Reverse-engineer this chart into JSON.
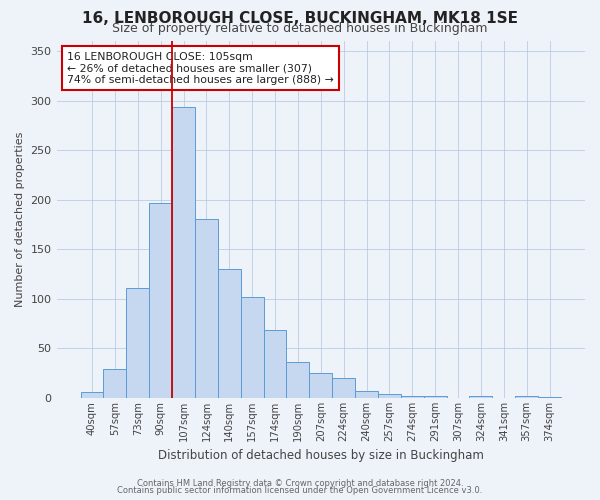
{
  "title": "16, LENBOROUGH CLOSE, BUCKINGHAM, MK18 1SE",
  "subtitle": "Size of property relative to detached houses in Buckingham",
  "xlabel": "Distribution of detached houses by size in Buckingham",
  "ylabel": "Number of detached properties",
  "bar_labels": [
    "40sqm",
    "57sqm",
    "73sqm",
    "90sqm",
    "107sqm",
    "124sqm",
    "140sqm",
    "157sqm",
    "174sqm",
    "190sqm",
    "207sqm",
    "224sqm",
    "240sqm",
    "257sqm",
    "274sqm",
    "291sqm",
    "307sqm",
    "324sqm",
    "341sqm",
    "357sqm",
    "374sqm"
  ],
  "bar_values": [
    6,
    29,
    111,
    197,
    293,
    181,
    130,
    102,
    69,
    36,
    25,
    20,
    7,
    4,
    2,
    2,
    0,
    2,
    0,
    2,
    1
  ],
  "bar_color": "#c5d8f0",
  "bar_edge_color": "#5b9bd5",
  "vline_index": 4,
  "vline_color": "#cc0000",
  "annotation_text": "16 LENBOROUGH CLOSE: 105sqm\n← 26% of detached houses are smaller (307)\n74% of semi-detached houses are larger (888) →",
  "annotation_box_color": "#ffffff",
  "annotation_box_edge": "#cc0000",
  "ylim": [
    0,
    360
  ],
  "yticks": [
    0,
    50,
    100,
    150,
    200,
    250,
    300,
    350
  ],
  "footer_line1": "Contains HM Land Registry data © Crown copyright and database right 2024.",
  "footer_line2": "Contains public sector information licensed under the Open Government Licence v3.0.",
  "bg_color": "#eef2f9",
  "plot_bg_color": "#eef2f9"
}
